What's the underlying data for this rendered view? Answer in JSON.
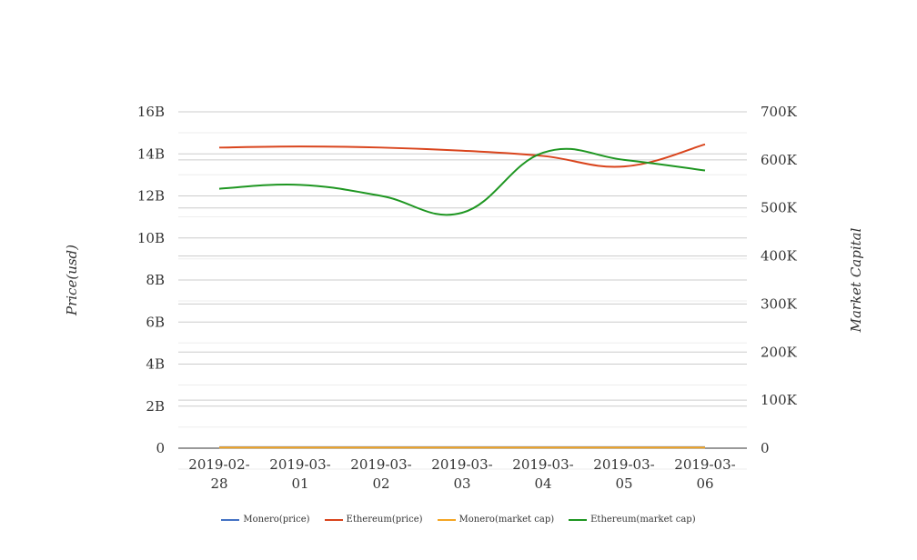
{
  "chart_data": {
    "type": "line",
    "categories": [
      "2019-02-28",
      "2019-03-01",
      "2019-03-02",
      "2019-03-03",
      "2019-03-04",
      "2019-03-05",
      "2019-03-06"
    ],
    "category_lines": [
      [
        "2019-02-",
        "28"
      ],
      [
        "2019-03-",
        "01"
      ],
      [
        "2019-03-",
        "02"
      ],
      [
        "2019-03-",
        "03"
      ],
      [
        "2019-03-",
        "04"
      ],
      [
        "2019-03-",
        "05"
      ],
      [
        "2019-03-",
        "06"
      ]
    ],
    "ylabel": "Price(usd)",
    "y2label": "Market Capital",
    "ylim": [
      0,
      16000000000
    ],
    "y2lim": [
      0,
      700000
    ],
    "yticks": [
      "0",
      "2B",
      "4B",
      "6B",
      "8B",
      "10B",
      "12B",
      "14B",
      "16B"
    ],
    "y2ticks": [
      "0",
      "100K",
      "200K",
      "300K",
      "400K",
      "500K",
      "600K",
      "700K"
    ],
    "grid": true,
    "legend_position": "bottom",
    "series": [
      {
        "name": "Monero(price)",
        "axis": "left",
        "color": "#4472c4",
        "values": [
          50000000,
          50000000,
          50000000,
          50000000,
          50000000,
          50000000,
          50000000
        ]
      },
      {
        "name": "Ethereum(price)",
        "axis": "left",
        "color": "#d9441c",
        "values": [
          14300000000,
          14350000000,
          14300000000,
          14150000000,
          13900000000,
          13400000000,
          14450000000
        ]
      },
      {
        "name": "Monero(market cap)",
        "axis": "right",
        "color": "#f5a623",
        "values": [
          1500,
          1500,
          1500,
          1500,
          1500,
          1500,
          1500
        ]
      },
      {
        "name": "Ethereum(market cap)",
        "axis": "right",
        "color": "#1e9621",
        "values": [
          540000,
          548000,
          525000,
          490000,
          615000,
          600000,
          578000
        ]
      }
    ]
  }
}
